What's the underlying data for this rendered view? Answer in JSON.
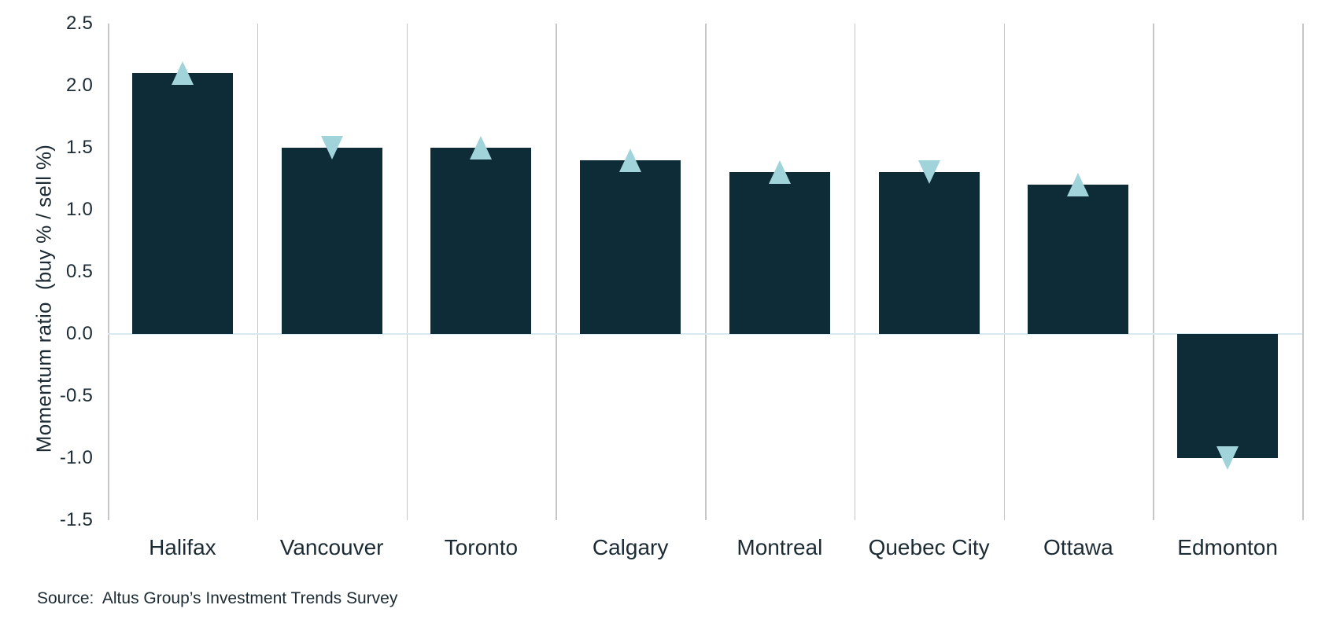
{
  "chart_data": {
    "type": "bar",
    "title": "",
    "xlabel": "",
    "ylabel": "Momentum ratio  (buy % / sell %)",
    "categories": [
      "Halifax",
      "Vancouver",
      "Toronto",
      "Calgary",
      "Montreal",
      "Quebec City",
      "Ottawa",
      "Edmonton"
    ],
    "values": [
      2.1,
      1.5,
      1.5,
      1.4,
      1.3,
      1.3,
      1.2,
      -1.0
    ],
    "markers": [
      "up",
      "down",
      "up",
      "up",
      "up",
      "down",
      "up",
      "down"
    ],
    "marker_meaning": "triangle-up or triangle-down glyph centered on the end of each bar",
    "ylim": [
      -1.5,
      2.5
    ],
    "yticks": [
      "2.5",
      "2.0",
      "1.5",
      "1.0",
      "0.5",
      "0.0",
      "-0.5",
      "-1.0",
      "-1.5"
    ],
    "grid": "vertical category-separator gridlines, light gray; light blue horizontal line at y=0",
    "legend": "none"
  },
  "source": {
    "text": "Source:  Altus Group’s Investment Trends Survey"
  },
  "colors": {
    "bar": "#0d2c38",
    "marker": "#a0d3da",
    "gridline": "#c6c6c6",
    "zero_line": "#d6eaef",
    "text": "#1c2b33",
    "background": "#ffffff"
  }
}
